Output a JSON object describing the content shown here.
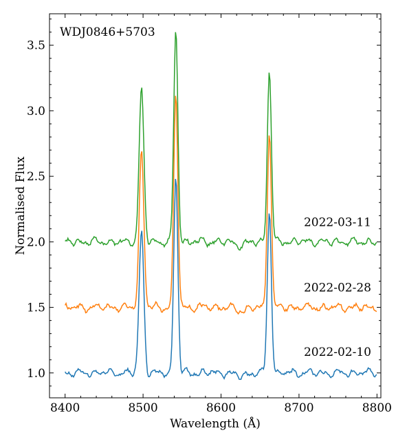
{
  "chart_data": {
    "type": "line",
    "title": "",
    "xlabel": "Wavelength (Å)",
    "ylabel": "Normalised Flux",
    "xlim": [
      8380,
      8805
    ],
    "ylim": [
      0.81,
      3.74
    ],
    "xticks": [
      8400,
      8500,
      8600,
      8700,
      8800
    ],
    "xtick_labels": [
      "8400",
      "8500",
      "8600",
      "8700",
      "8800"
    ],
    "yticks": [
      1.0,
      1.5,
      2.0,
      2.5,
      3.0,
      3.5
    ],
    "ytick_labels": [
      "1.0",
      "1.5",
      "2.0",
      "2.5",
      "3.0",
      "3.5"
    ],
    "grid": false,
    "annotation": "WDJ0846+5703",
    "series": [
      {
        "name": "2022-02-10",
        "offset": 1.0,
        "color": "#1f77b4",
        "peaks": [
          {
            "x": 8498,
            "height": 1.08,
            "width": 3.0
          },
          {
            "x": 8542,
            "height": 1.5,
            "width": 2.6
          },
          {
            "x": 8662,
            "height": 1.23,
            "width": 2.6
          }
        ]
      },
      {
        "name": "2022-02-28",
        "offset": 1.5,
        "color": "#ff7f0e",
        "peaks": [
          {
            "x": 8498,
            "height": 1.18,
            "width": 3.0
          },
          {
            "x": 8542,
            "height": 1.64,
            "width": 2.6
          },
          {
            "x": 8662,
            "height": 1.36,
            "width": 2.6
          }
        ]
      },
      {
        "name": "2022-03-11",
        "offset": 2.0,
        "color": "#2ca02c",
        "peaks": [
          {
            "x": 8498,
            "height": 1.16,
            "width": 3.0
          },
          {
            "x": 8542,
            "height": 1.62,
            "width": 2.6
          },
          {
            "x": 8662,
            "height": 1.31,
            "width": 2.6
          }
        ]
      }
    ],
    "label_positions": [
      {
        "series": "2022-02-10",
        "y": 1.13
      },
      {
        "series": "2022-02-28",
        "y": 1.62
      },
      {
        "series": "2022-03-11",
        "y": 2.12
      }
    ]
  }
}
